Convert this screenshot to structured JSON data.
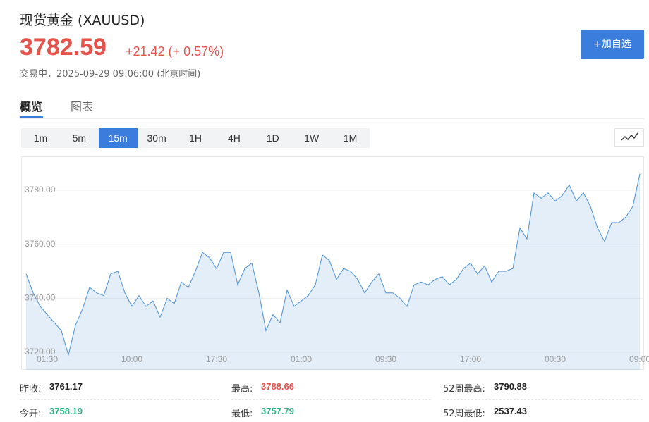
{
  "header": {
    "title": "现货黄金 (XAUUSD)",
    "price": "3782.59",
    "change": "+21.42 (+ 0.57%)",
    "status": "交易中，2025-09-29 09:06:00 (北京时间)",
    "watch_button": "+加自选"
  },
  "tabs": [
    "概览",
    "图表"
  ],
  "intervals": [
    "1m",
    "5m",
    "15m",
    "30m",
    "1H",
    "4H",
    "1D",
    "1W",
    "1M"
  ],
  "chart_data": {
    "type": "area",
    "color": "#4a90d9",
    "grid": true,
    "categories": [
      null,
      null,
      null,
      "01:30",
      null,
      null,
      null,
      null,
      null,
      null,
      null,
      null,
      null,
      null,
      null,
      "10:00",
      null,
      null,
      null,
      null,
      null,
      null,
      null,
      null,
      null,
      null,
      null,
      "17:30",
      null,
      null,
      null,
      null,
      null,
      null,
      null,
      null,
      null,
      null,
      null,
      "01:00",
      null,
      null,
      null,
      null,
      null,
      null,
      null,
      null,
      null,
      null,
      null,
      "09:30",
      null,
      null,
      null,
      null,
      null,
      null,
      null,
      null,
      null,
      null,
      null,
      "17:00",
      null,
      null,
      null,
      null,
      null,
      null,
      null,
      null,
      null,
      null,
      null,
      "00:30",
      null,
      null,
      null,
      null,
      null,
      null,
      null,
      null,
      null,
      null,
      null,
      "09:00"
    ],
    "values": [
      3749,
      3742,
      3737,
      3734,
      3731,
      3728,
      3719,
      3730,
      3736,
      3744,
      3742,
      3741,
      3749,
      3750,
      3742,
      3737,
      3741,
      3737,
      3739,
      3733,
      3740,
      3738,
      3746,
      3744,
      3750,
      3757,
      3755,
      3751,
      3757,
      3757,
      3745,
      3751,
      3753,
      3742,
      3728,
      3734,
      3731,
      3743,
      3737,
      3739,
      3741,
      3745,
      3756,
      3754,
      3747,
      3751,
      3750,
      3747,
      3742,
      3746,
      3749,
      3742,
      3742,
      3740,
      3737,
      3745,
      3746,
      3745,
      3747,
      3748,
      3745,
      3747,
      3751,
      3753,
      3749,
      3752,
      3746,
      3750,
      3750,
      3751,
      3766,
      3762,
      3779,
      3777,
      3779,
      3776,
      3778,
      3782,
      3776,
      3779,
      3774,
      3766,
      3761,
      3768,
      3768,
      3770,
      3774,
      3786
    ],
    "ylim": [
      3713.5,
      3792.5
    ],
    "yticks": [
      {
        "value": 3720,
        "label": "3720.00"
      },
      {
        "value": 3740,
        "label": "3740.00"
      },
      {
        "value": 3760,
        "label": "3760.00"
      },
      {
        "value": 3780,
        "label": "3780.00"
      }
    ]
  },
  "stats": [
    {
      "label": "昨收:",
      "value": "3761.17"
    },
    {
      "label": "最高:",
      "value": "3788.66"
    },
    {
      "label": "52周最高:",
      "value": "3790.88"
    },
    {
      "label": "今开:",
      "value": "3758.19"
    },
    {
      "label": "最低:",
      "value": "3757.79"
    },
    {
      "label": "52周最低:",
      "value": "2537.43"
    }
  ]
}
